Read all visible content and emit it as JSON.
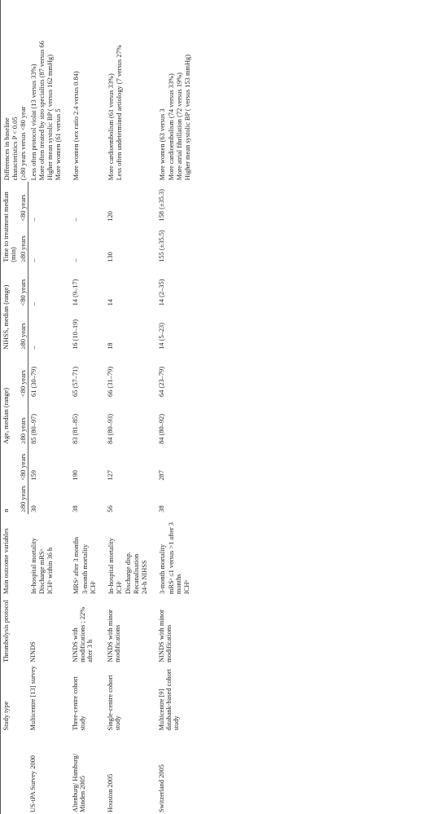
{
  "headers": {
    "study": "",
    "type": "Study type",
    "proto": "Thrombolysis protocol",
    "outcome": "Main outcome variables",
    "n_group": "n",
    "age_group": "Age, median (range)",
    "nihss_group": "NIHSS, median (range)",
    "time_group": "Time to treatment median (min)",
    "ge80": "≥80 years",
    "lt80": "<80 years",
    "diff_line1": "Differences in baseline",
    "diff_line2": "characteristics P < 0.05",
    "diff_line3": "(≥80 years versus <80 year"
  },
  "rows": [
    {
      "study": "US-tPA Survey 2000",
      "type": "Multicentre [13] survey",
      "proto": "NINDS",
      "outcome": [
        "In-hospital mortality",
        "Discharge mRSᵃ",
        "ICHᵇ within 36 h"
      ],
      "n80": "30",
      "nlt": "159",
      "a80": "85 (80–97)",
      "alt": "61 (30–79)",
      "ni80": "–",
      "nilt": "–",
      "t80": "–",
      "tlt": "–",
      "diff": [
        "Less often protocol violat (13 versus 33%)",
        "More often treated by stro specialists (87 versus 66",
        "Higher mean systolic BP ( versus 162 mmHg)",
        "More women (61 versus 5"
      ]
    },
    {
      "study": "Altenburg/ Hamburg/ Minden 2005",
      "type": "Three-centre cohort study",
      "proto": "NINDS with modifications ; 22% after 3 h",
      "outcome": [
        "MRSᵃ after 3 months",
        "",
        "3-month mortality",
        "ICHᶜ"
      ],
      "n80": "38",
      "nlt": "190",
      "a80": "83 (81–85)",
      "alt": "65 (57–71)",
      "ni80": "16 (10–19)",
      "nilt": "14 (9–17)",
      "t80": "–",
      "tlt": "–",
      "diff": [
        "More women (sex ratio 2.4 versus 0.84)"
      ]
    },
    {
      "study": "Houston 2005",
      "type": "Single-centre cohort study",
      "proto": "NINDS with minor modifications",
      "outcome": [
        "In-hospital mortality",
        "ICHᶜ",
        "",
        "Discharge disp.",
        "Recanalisation",
        "24-h NIHSS"
      ],
      "n80": "56",
      "nlt": "127",
      "a80": "84 (80–93)",
      "alt": "66 (31–79)",
      "ni80": "18",
      "nilt": "14",
      "t80": "130",
      "tlt": "120",
      "diff": [
        "More cardioembolism (61 versus 33%)",
        "Less often undetermined aetiology (7 versus 27%"
      ]
    },
    {
      "study": "Switzerland 2005",
      "type": "Multicentre [9] databank-based cohort study",
      "proto": "NINDS with minor modifications",
      "outcome": [
        "3-month mortality",
        "",
        "mRSᵃ ≤1 versus >1 after 3 months",
        "ICHᵇ"
      ],
      "n80": "38",
      "nlt": "287",
      "a80": "84 (80–92)",
      "alt": "64 (23–79)",
      "ni80": "14 (5–23)",
      "nilt": "14 (2–35)",
      "t80": "155 (±35.5)",
      "tlt": "158 (±35.3)",
      "diff": [
        "More women (63 versus 3",
        "",
        "More cardioembolism (74 versus 33%)",
        "More atrial fibrillation (72 versus 19%)",
        "Higher mean systolic BP ( versus 153 mmHg)"
      ]
    }
  ]
}
